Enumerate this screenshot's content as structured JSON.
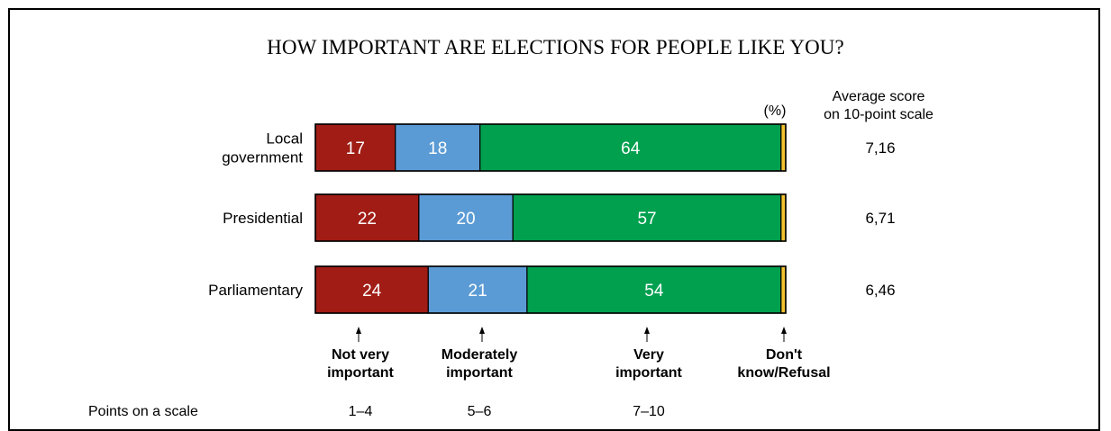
{
  "chart_data": {
    "type": "bar",
    "orientation": "horizontal",
    "stacked": true,
    "title": "HOW IMPORTANT ARE ELECTIONS FOR PEOPLE LIKE YOU?",
    "unit_label": "(%)",
    "categories": [
      "Local government",
      "Presidential",
      "Parliamentary"
    ],
    "category_lines": [
      [
        "Local",
        "government"
      ],
      [
        "Presidential"
      ],
      [
        "Parliamentary"
      ]
    ],
    "series": [
      {
        "name": "Not very important",
        "label_lines": [
          "Not very",
          "important"
        ],
        "scale_points": "1–4",
        "color": "#a01c15",
        "values": [
          17,
          22,
          24
        ]
      },
      {
        "name": "Moderately important",
        "label_lines": [
          "Moderately",
          "important"
        ],
        "scale_points": "5–6",
        "color": "#5b9bd5",
        "values": [
          18,
          20,
          21
        ]
      },
      {
        "name": "Very important",
        "label_lines": [
          "Very",
          "important"
        ],
        "scale_points": "7–10",
        "color": "#00a04f",
        "values": [
          64,
          57,
          54
        ]
      },
      {
        "name": "Don't know/Refusal",
        "label_lines": [
          "Don't",
          "know/Refusal"
        ],
        "scale_points": "",
        "color": "#f2c230",
        "values": [
          1,
          1,
          1
        ]
      }
    ],
    "average_header": [
      "Average score",
      "on 10-point scale"
    ],
    "average_scores": [
      "7,16",
      "6,71",
      "6,46"
    ],
    "scale_row_label": "Points on a scale",
    "xlim": [
      0,
      100
    ]
  }
}
